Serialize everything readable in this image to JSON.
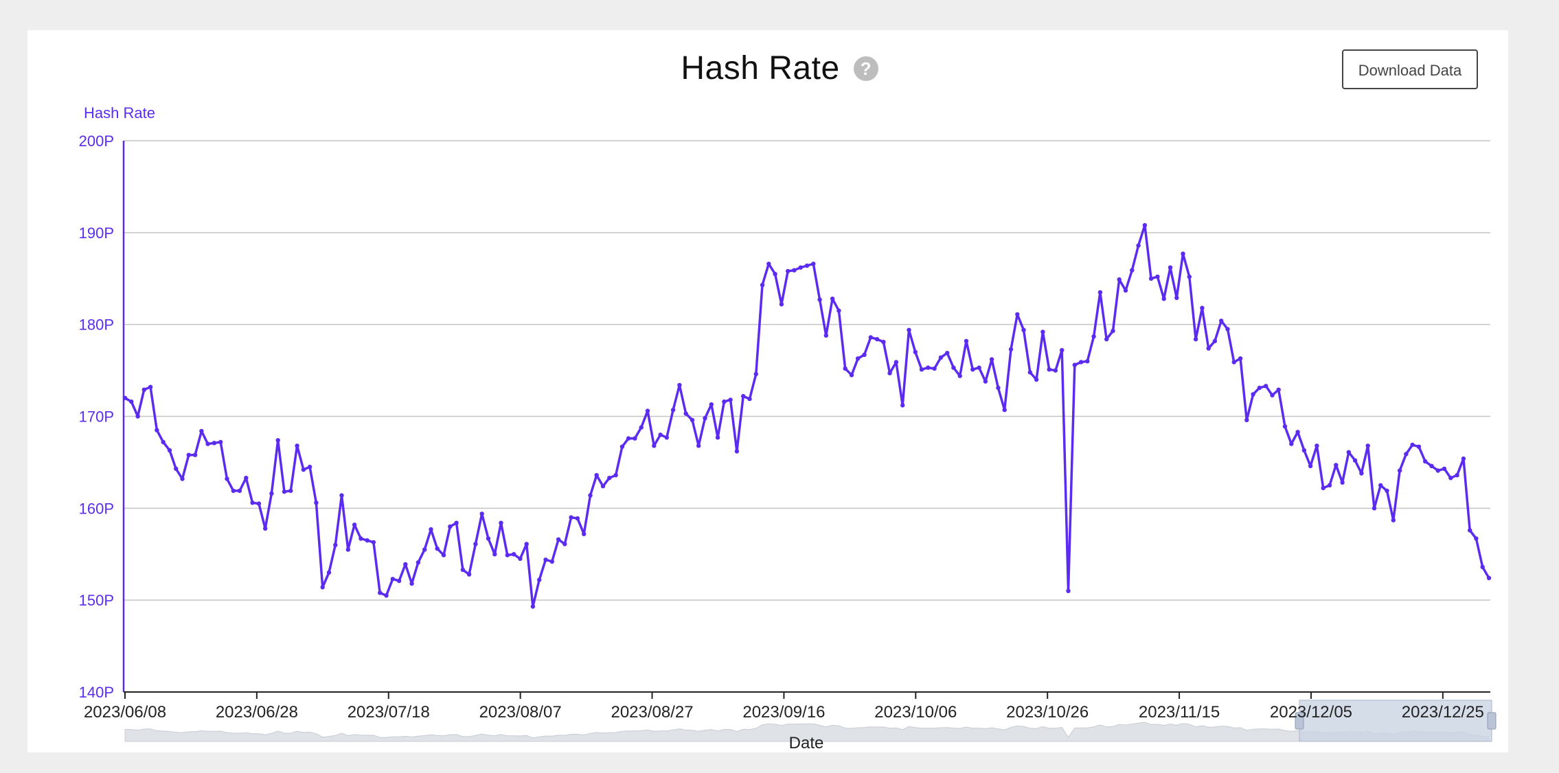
{
  "page": {
    "title": "Hash Rate",
    "help_icon": "question-mark-icon",
    "download_label": "Download Data"
  },
  "colors": {
    "series": "#5b2bf0",
    "grid": "#c4c4c4",
    "navigator_fill": "#dfe2e7",
    "navigator_window": "#cbd5e4"
  },
  "chart_data": {
    "type": "line",
    "title": "Hash Rate",
    "ylabel": "Hash Rate",
    "xlabel": "Date",
    "ylim": [
      140,
      200
    ],
    "y_unit": "P",
    "yticks": [
      "140P",
      "150P",
      "160P",
      "170P",
      "180P",
      "190P",
      "200P"
    ],
    "xticks": [
      "2023/06/08",
      "2023/06/28",
      "2023/07/18",
      "2023/08/07",
      "2023/08/27",
      "2023/09/16",
      "2023/10/06",
      "2023/10/26",
      "2023/11/15",
      "2023/12/05",
      "2023/12/25"
    ],
    "x_start": "2023/06/08",
    "x_end": "2024/01/01",
    "grid": true,
    "legend": "none",
    "series": [
      {
        "name": "Hash Rate",
        "values": [
          172.0,
          171.6,
          170.0,
          172.9,
          173.2,
          168.5,
          167.2,
          166.3,
          164.3,
          163.2,
          165.8,
          165.8,
          168.4,
          167.0,
          167.1,
          167.2,
          163.2,
          161.9,
          161.9,
          163.3,
          160.6,
          160.5,
          157.8,
          161.6,
          167.4,
          161.8,
          161.9,
          166.8,
          164.2,
          164.5,
          160.6,
          151.4,
          153.0,
          156.0,
          161.4,
          155.5,
          158.2,
          156.7,
          156.5,
          156.3,
          150.8,
          150.5,
          152.3,
          152.1,
          153.9,
          151.8,
          154.1,
          155.5,
          157.7,
          155.6,
          154.9,
          158.0,
          158.4,
          153.3,
          152.8,
          156.1,
          159.4,
          156.7,
          155.0,
          158.4,
          154.9,
          155.0,
          154.5,
          156.1,
          149.3,
          152.2,
          154.4,
          154.2,
          156.6,
          156.1,
          159.0,
          158.9,
          157.2,
          161.4,
          163.6,
          162.4,
          163.3,
          163.6,
          166.7,
          167.6,
          167.6,
          168.8,
          170.6,
          166.8,
          168.0,
          167.7,
          170.7,
          173.4,
          170.3,
          169.6,
          166.8,
          169.8,
          171.3,
          167.7,
          171.6,
          171.8,
          166.2,
          172.2,
          171.9,
          174.6,
          184.3,
          186.6,
          185.5,
          182.2,
          185.8,
          185.9,
          186.2,
          186.4,
          186.6,
          182.7,
          178.8,
          182.8,
          181.5,
          175.2,
          174.5,
          176.3,
          176.7,
          178.6,
          178.4,
          178.1,
          174.7,
          175.9,
          171.2,
          179.4,
          177.0,
          175.1,
          175.3,
          175.2,
          176.4,
          176.9,
          175.3,
          174.4,
          178.2,
          175.1,
          175.3,
          173.8,
          176.2,
          173.1,
          170.7,
          177.3,
          181.1,
          179.4,
          174.8,
          174.0,
          179.2,
          175.1,
          175.0,
          177.2,
          151.0,
          175.6,
          175.9,
          176.0,
          178.7,
          183.5,
          178.4,
          179.3,
          184.9,
          183.7,
          185.9,
          188.6,
          190.8,
          185.0,
          185.2,
          182.8,
          186.2,
          182.9,
          187.7,
          185.2,
          178.4,
          181.8,
          177.4,
          178.2,
          180.4,
          179.5,
          175.9,
          176.3,
          169.6,
          172.4,
          173.1,
          173.3,
          172.3,
          172.9,
          168.9,
          167.0,
          168.3,
          166.3,
          164.6,
          166.8,
          162.2,
          162.5,
          164.7,
          162.8,
          166.1,
          165.2,
          163.8,
          166.8,
          160.0,
          162.5,
          161.9,
          158.7,
          164.1,
          165.9,
          166.9,
          166.7,
          165.1,
          164.6,
          164.1,
          164.3,
          163.3,
          163.6,
          165.4,
          157.6,
          156.7,
          153.6,
          152.4
        ]
      }
    ]
  }
}
